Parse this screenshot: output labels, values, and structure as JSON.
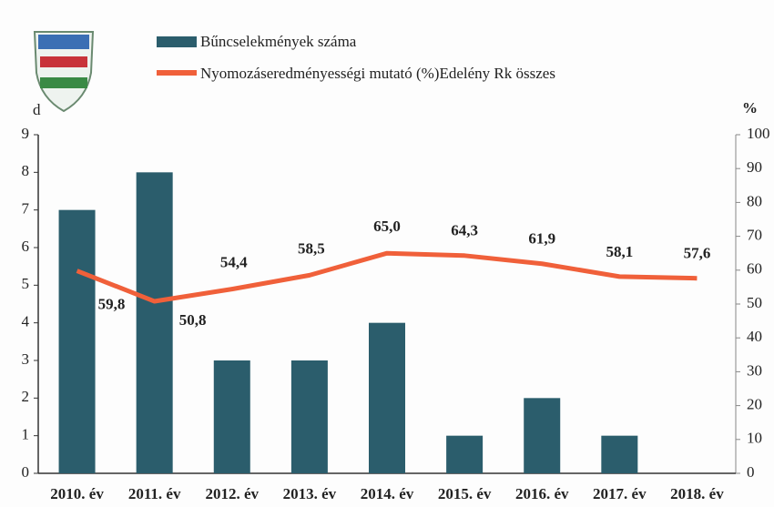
{
  "chart_data": {
    "type": "bar-line",
    "y_label": "d",
    "y2_label": "%",
    "categories": [
      "2010. év",
      "2011. év",
      "2012. év",
      "2013. év",
      "2014. év",
      "2015. év",
      "2016. év",
      "2017. év",
      "2018. év"
    ],
    "series": [
      {
        "name": "Bűncselekmények száma",
        "type": "bar",
        "color": "#2b5d6c",
        "values": [
          7,
          8,
          3,
          3,
          4,
          1,
          2,
          1,
          0
        ]
      },
      {
        "name": "Nyomozáseredményességi mutató (%)Edelény Rk összes",
        "type": "line",
        "axis": "y2",
        "color": "#f0603a",
        "values": [
          59.8,
          50.8,
          54.4,
          58.5,
          65,
          64.3,
          61.9,
          58.1,
          57.6
        ],
        "value_labels": [
          "59,8",
          "50,8",
          "54,4",
          "58,5",
          "65,0",
          "64,3",
          "61,9",
          "58,1",
          "57,6"
        ]
      }
    ],
    "ylim": [
      0,
      9
    ],
    "yticks": [
      0,
      1,
      2,
      3,
      4,
      5,
      6,
      7,
      8,
      9
    ],
    "y2lim": [
      0,
      100
    ],
    "y2ticks": [
      0,
      10,
      20,
      30,
      40,
      50,
      60,
      70,
      80,
      90,
      100
    ]
  }
}
